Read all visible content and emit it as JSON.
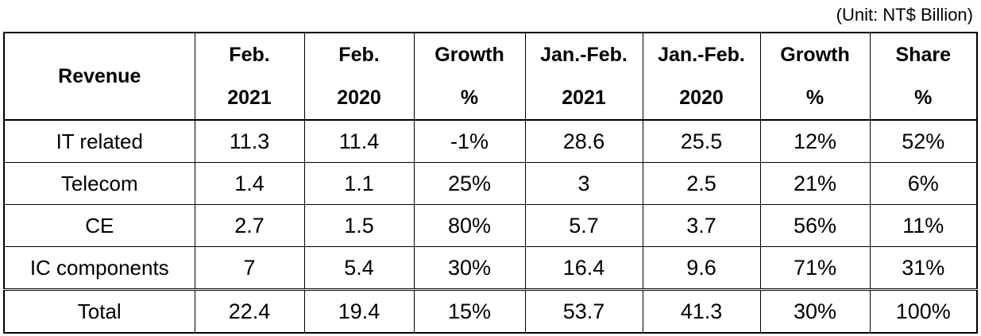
{
  "unit_note": "(Unit: NT$ Billion)",
  "table": {
    "header": {
      "revenue": "Revenue",
      "columns": [
        {
          "line1": "Feb.",
          "line2": "2021"
        },
        {
          "line1": "Feb.",
          "line2": "2020"
        },
        {
          "line1": "Growth",
          "line2": "%"
        },
        {
          "line1": "Jan.-Feb.",
          "line2": "2021"
        },
        {
          "line1": "Jan.-Feb.",
          "line2": "2020"
        },
        {
          "line1": "Growth",
          "line2": "%"
        },
        {
          "line1": "Share",
          "line2": "%"
        }
      ]
    },
    "rows": [
      {
        "label": "IT related",
        "values": [
          "11.3",
          "11.4",
          "-1%",
          "28.6",
          "25.5",
          "12%",
          "52%"
        ]
      },
      {
        "label": "Telecom",
        "values": [
          "1.4",
          "1.1",
          "25%",
          "3",
          "2.5",
          "21%",
          "6%"
        ]
      },
      {
        "label": "CE",
        "values": [
          "2.7",
          "1.5",
          "80%",
          "5.7",
          "3.7",
          "56%",
          "11%"
        ]
      },
      {
        "label": "IC components",
        "values": [
          "7",
          "5.4",
          "30%",
          "16.4",
          "9.6",
          "71%",
          "31%"
        ]
      }
    ],
    "total": {
      "label": "Total",
      "values": [
        "22.4",
        "19.4",
        "15%",
        "53.7",
        "41.3",
        "30%",
        "100%"
      ]
    }
  }
}
